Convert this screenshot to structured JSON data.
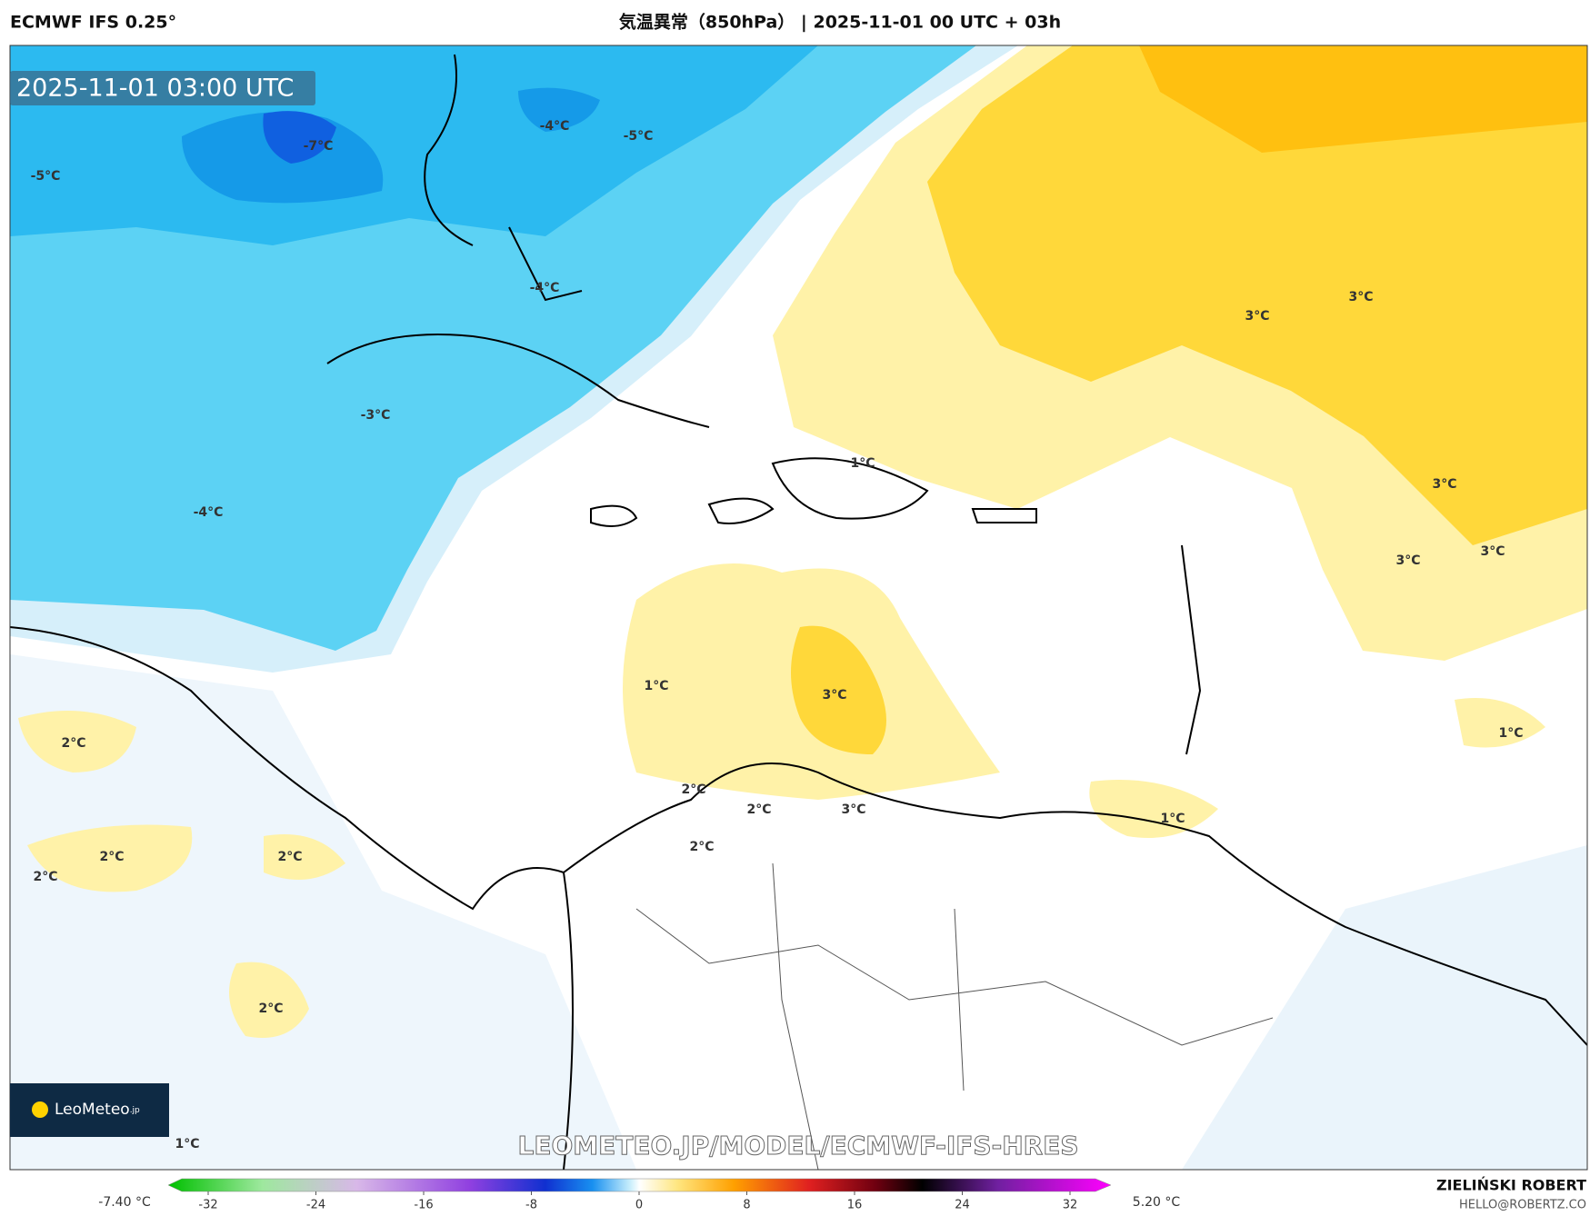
{
  "header": {
    "model": "ECMWF IFS 0.25°",
    "title": "気温異常（850hPa） | 2025-11-01 00 UTC + 03h"
  },
  "timestamp": "2025-11-01 03:00 UTC",
  "contour_labels": [
    "-7°C",
    "-5°C",
    "-4°C",
    "-5°C",
    "-4°C",
    "-3°C",
    "-4°C",
    "1°C",
    "3°C",
    "3°C",
    "3°C",
    "3°C",
    "3°C",
    "1°C",
    "3°C",
    "1°C",
    "2°C",
    "2°C",
    "2°C",
    "3°C",
    "2°C",
    "1°C",
    "2°C",
    "2°C",
    "2°C",
    "2°C",
    "1°C"
  ],
  "watermark": "LEOMETEO.JP/MODEL/ECMWF-IFS-HRES",
  "logo": {
    "name": "LeoMeteo",
    "suffix": ".jp"
  },
  "colorbar": {
    "min_label": "-7.40 °C",
    "max_label": "5.20 °C",
    "ticks": [
      -32,
      -24,
      -16,
      -8,
      0,
      8,
      16,
      24,
      32
    ]
  },
  "credits": {
    "author": "ZIELIŃSKI ROBERT",
    "email": "HELLO@ROBERTZ.CO"
  }
}
